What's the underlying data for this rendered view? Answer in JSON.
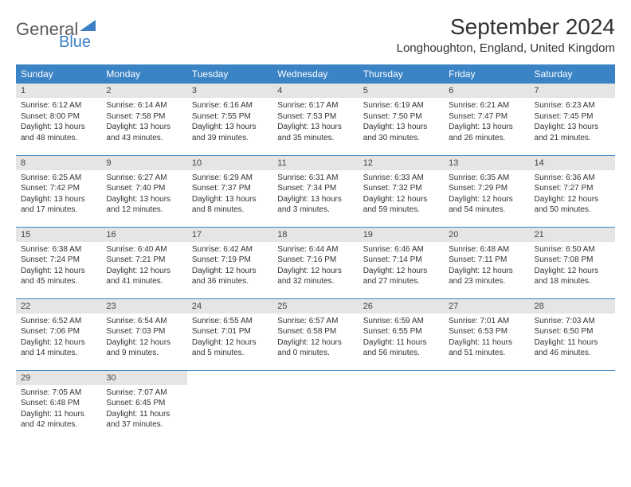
{
  "logo": {
    "text1": "General",
    "text2": "Blue",
    "color1": "#5a5a5a",
    "color2": "#3a7fc4"
  },
  "title": "September 2024",
  "location": "Longhoughton, England, United Kingdom",
  "colors": {
    "header_bg": "#3a83c5",
    "header_text": "#ffffff",
    "daynum_bg": "#e5e5e5",
    "row_divider": "#3a83c5",
    "body_text": "#333333"
  },
  "fonts": {
    "title_pt": 28,
    "location_pt": 15,
    "header_pt": 12,
    "daynum_pt": 11,
    "body_pt": 10
  },
  "weekdays": [
    "Sunday",
    "Monday",
    "Tuesday",
    "Wednesday",
    "Thursday",
    "Friday",
    "Saturday"
  ],
  "days": [
    {
      "n": "1",
      "sunrise": "Sunrise: 6:12 AM",
      "sunset": "Sunset: 8:00 PM",
      "daylight": "Daylight: 13 hours and 48 minutes."
    },
    {
      "n": "2",
      "sunrise": "Sunrise: 6:14 AM",
      "sunset": "Sunset: 7:58 PM",
      "daylight": "Daylight: 13 hours and 43 minutes."
    },
    {
      "n": "3",
      "sunrise": "Sunrise: 6:16 AM",
      "sunset": "Sunset: 7:55 PM",
      "daylight": "Daylight: 13 hours and 39 minutes."
    },
    {
      "n": "4",
      "sunrise": "Sunrise: 6:17 AM",
      "sunset": "Sunset: 7:53 PM",
      "daylight": "Daylight: 13 hours and 35 minutes."
    },
    {
      "n": "5",
      "sunrise": "Sunrise: 6:19 AM",
      "sunset": "Sunset: 7:50 PM",
      "daylight": "Daylight: 13 hours and 30 minutes."
    },
    {
      "n": "6",
      "sunrise": "Sunrise: 6:21 AM",
      "sunset": "Sunset: 7:47 PM",
      "daylight": "Daylight: 13 hours and 26 minutes."
    },
    {
      "n": "7",
      "sunrise": "Sunrise: 6:23 AM",
      "sunset": "Sunset: 7:45 PM",
      "daylight": "Daylight: 13 hours and 21 minutes."
    },
    {
      "n": "8",
      "sunrise": "Sunrise: 6:25 AM",
      "sunset": "Sunset: 7:42 PM",
      "daylight": "Daylight: 13 hours and 17 minutes."
    },
    {
      "n": "9",
      "sunrise": "Sunrise: 6:27 AM",
      "sunset": "Sunset: 7:40 PM",
      "daylight": "Daylight: 13 hours and 12 minutes."
    },
    {
      "n": "10",
      "sunrise": "Sunrise: 6:29 AM",
      "sunset": "Sunset: 7:37 PM",
      "daylight": "Daylight: 13 hours and 8 minutes."
    },
    {
      "n": "11",
      "sunrise": "Sunrise: 6:31 AM",
      "sunset": "Sunset: 7:34 PM",
      "daylight": "Daylight: 13 hours and 3 minutes."
    },
    {
      "n": "12",
      "sunrise": "Sunrise: 6:33 AM",
      "sunset": "Sunset: 7:32 PM",
      "daylight": "Daylight: 12 hours and 59 minutes."
    },
    {
      "n": "13",
      "sunrise": "Sunrise: 6:35 AM",
      "sunset": "Sunset: 7:29 PM",
      "daylight": "Daylight: 12 hours and 54 minutes."
    },
    {
      "n": "14",
      "sunrise": "Sunrise: 6:36 AM",
      "sunset": "Sunset: 7:27 PM",
      "daylight": "Daylight: 12 hours and 50 minutes."
    },
    {
      "n": "15",
      "sunrise": "Sunrise: 6:38 AM",
      "sunset": "Sunset: 7:24 PM",
      "daylight": "Daylight: 12 hours and 45 minutes."
    },
    {
      "n": "16",
      "sunrise": "Sunrise: 6:40 AM",
      "sunset": "Sunset: 7:21 PM",
      "daylight": "Daylight: 12 hours and 41 minutes."
    },
    {
      "n": "17",
      "sunrise": "Sunrise: 6:42 AM",
      "sunset": "Sunset: 7:19 PM",
      "daylight": "Daylight: 12 hours and 36 minutes."
    },
    {
      "n": "18",
      "sunrise": "Sunrise: 6:44 AM",
      "sunset": "Sunset: 7:16 PM",
      "daylight": "Daylight: 12 hours and 32 minutes."
    },
    {
      "n": "19",
      "sunrise": "Sunrise: 6:46 AM",
      "sunset": "Sunset: 7:14 PM",
      "daylight": "Daylight: 12 hours and 27 minutes."
    },
    {
      "n": "20",
      "sunrise": "Sunrise: 6:48 AM",
      "sunset": "Sunset: 7:11 PM",
      "daylight": "Daylight: 12 hours and 23 minutes."
    },
    {
      "n": "21",
      "sunrise": "Sunrise: 6:50 AM",
      "sunset": "Sunset: 7:08 PM",
      "daylight": "Daylight: 12 hours and 18 minutes."
    },
    {
      "n": "22",
      "sunrise": "Sunrise: 6:52 AM",
      "sunset": "Sunset: 7:06 PM",
      "daylight": "Daylight: 12 hours and 14 minutes."
    },
    {
      "n": "23",
      "sunrise": "Sunrise: 6:54 AM",
      "sunset": "Sunset: 7:03 PM",
      "daylight": "Daylight: 12 hours and 9 minutes."
    },
    {
      "n": "24",
      "sunrise": "Sunrise: 6:55 AM",
      "sunset": "Sunset: 7:01 PM",
      "daylight": "Daylight: 12 hours and 5 minutes."
    },
    {
      "n": "25",
      "sunrise": "Sunrise: 6:57 AM",
      "sunset": "Sunset: 6:58 PM",
      "daylight": "Daylight: 12 hours and 0 minutes."
    },
    {
      "n": "26",
      "sunrise": "Sunrise: 6:59 AM",
      "sunset": "Sunset: 6:55 PM",
      "daylight": "Daylight: 11 hours and 56 minutes."
    },
    {
      "n": "27",
      "sunrise": "Sunrise: 7:01 AM",
      "sunset": "Sunset: 6:53 PM",
      "daylight": "Daylight: 11 hours and 51 minutes."
    },
    {
      "n": "28",
      "sunrise": "Sunrise: 7:03 AM",
      "sunset": "Sunset: 6:50 PM",
      "daylight": "Daylight: 11 hours and 46 minutes."
    },
    {
      "n": "29",
      "sunrise": "Sunrise: 7:05 AM",
      "sunset": "Sunset: 6:48 PM",
      "daylight": "Daylight: 11 hours and 42 minutes."
    },
    {
      "n": "30",
      "sunrise": "Sunrise: 7:07 AM",
      "sunset": "Sunset: 6:45 PM",
      "daylight": "Daylight: 11 hours and 37 minutes."
    }
  ]
}
